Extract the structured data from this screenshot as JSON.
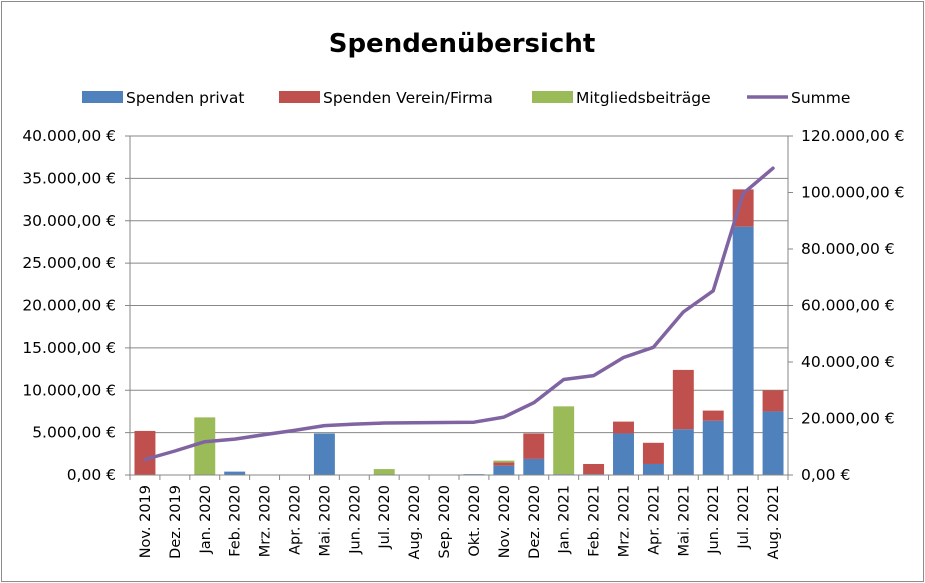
{
  "chart_data": {
    "type": "bar",
    "stacked": true,
    "title": "Spendenübersicht",
    "legend_position": "top",
    "grid": true,
    "categories": [
      "Nov. 2019",
      "Dez. 2019",
      "Jan. 2020",
      "Feb. 2020",
      "Mrz. 2020",
      "Apr. 2020",
      "Mai. 2020",
      "Jun. 2020",
      "Jul. 2020",
      "Aug. 2020",
      "Sep. 2020",
      "Okt. 2020",
      "Nov. 2020",
      "Dez. 2020",
      "Jan. 2021",
      "Feb. 2021",
      "Mrz. 2021",
      "Apr. 2021",
      "Mai. 2021",
      "Jun. 2021",
      "Jul. 2021",
      "Aug. 2021"
    ],
    "y_left": {
      "range": [
        0,
        40000
      ],
      "ticks": [
        0,
        5000,
        10000,
        15000,
        20000,
        25000,
        30000,
        35000,
        40000
      ],
      "tick_labels": [
        "0,00 €",
        "5.000,00 €",
        "10.000,00 €",
        "15.000,00 €",
        "20.000,00 €",
        "25.000,00 €",
        "30.000,00 €",
        "35.000,00 €",
        "40.000,00 €"
      ]
    },
    "y_right": {
      "range": [
        0,
        120000
      ],
      "ticks": [
        0,
        20000,
        40000,
        60000,
        80000,
        100000,
        120000
      ],
      "tick_labels": [
        "0,00 €",
        "20.000,00 €",
        "40.000,00 €",
        "60.000,00 €",
        "80.000,00 €",
        "100.000,00 €",
        "120.000,00 €"
      ]
    },
    "series": [
      {
        "name": "Spenden privat",
        "kind": "bar",
        "axis": "left",
        "color": "#4f81bd",
        "values": [
          0,
          0,
          0,
          400,
          0,
          0,
          4900,
          0,
          0,
          0,
          0,
          100,
          1100,
          1900,
          100,
          100,
          4900,
          1300,
          5400,
          6400,
          29300,
          7500
        ]
      },
      {
        "name": "Spenden Verein/Firma",
        "kind": "bar",
        "axis": "left",
        "color": "#c0504d",
        "values": [
          5200,
          0,
          0,
          0,
          0,
          0,
          0,
          0,
          0,
          0,
          0,
          0,
          400,
          3000,
          0,
          1200,
          1400,
          2500,
          7000,
          1200,
          4400,
          2500
        ]
      },
      {
        "name": "Mitgliedsbeiträge",
        "kind": "bar",
        "axis": "left",
        "color": "#9bbb59",
        "values": [
          0,
          0,
          6800,
          0,
          0,
          0,
          0,
          0,
          700,
          0,
          0,
          0,
          200,
          0,
          8000,
          0,
          0,
          0,
          0,
          0,
          0,
          0
        ]
      },
      {
        "name": "Summe",
        "kind": "line",
        "axis": "right",
        "color": "#8064a2",
        "values": [
          5500,
          8500,
          11800,
          12700,
          14300,
          15800,
          17500,
          18000,
          18400,
          18500,
          18600,
          18700,
          20500,
          25600,
          33800,
          35200,
          41600,
          45200,
          57700,
          65200,
          99600,
          108600
        ]
      }
    ]
  }
}
